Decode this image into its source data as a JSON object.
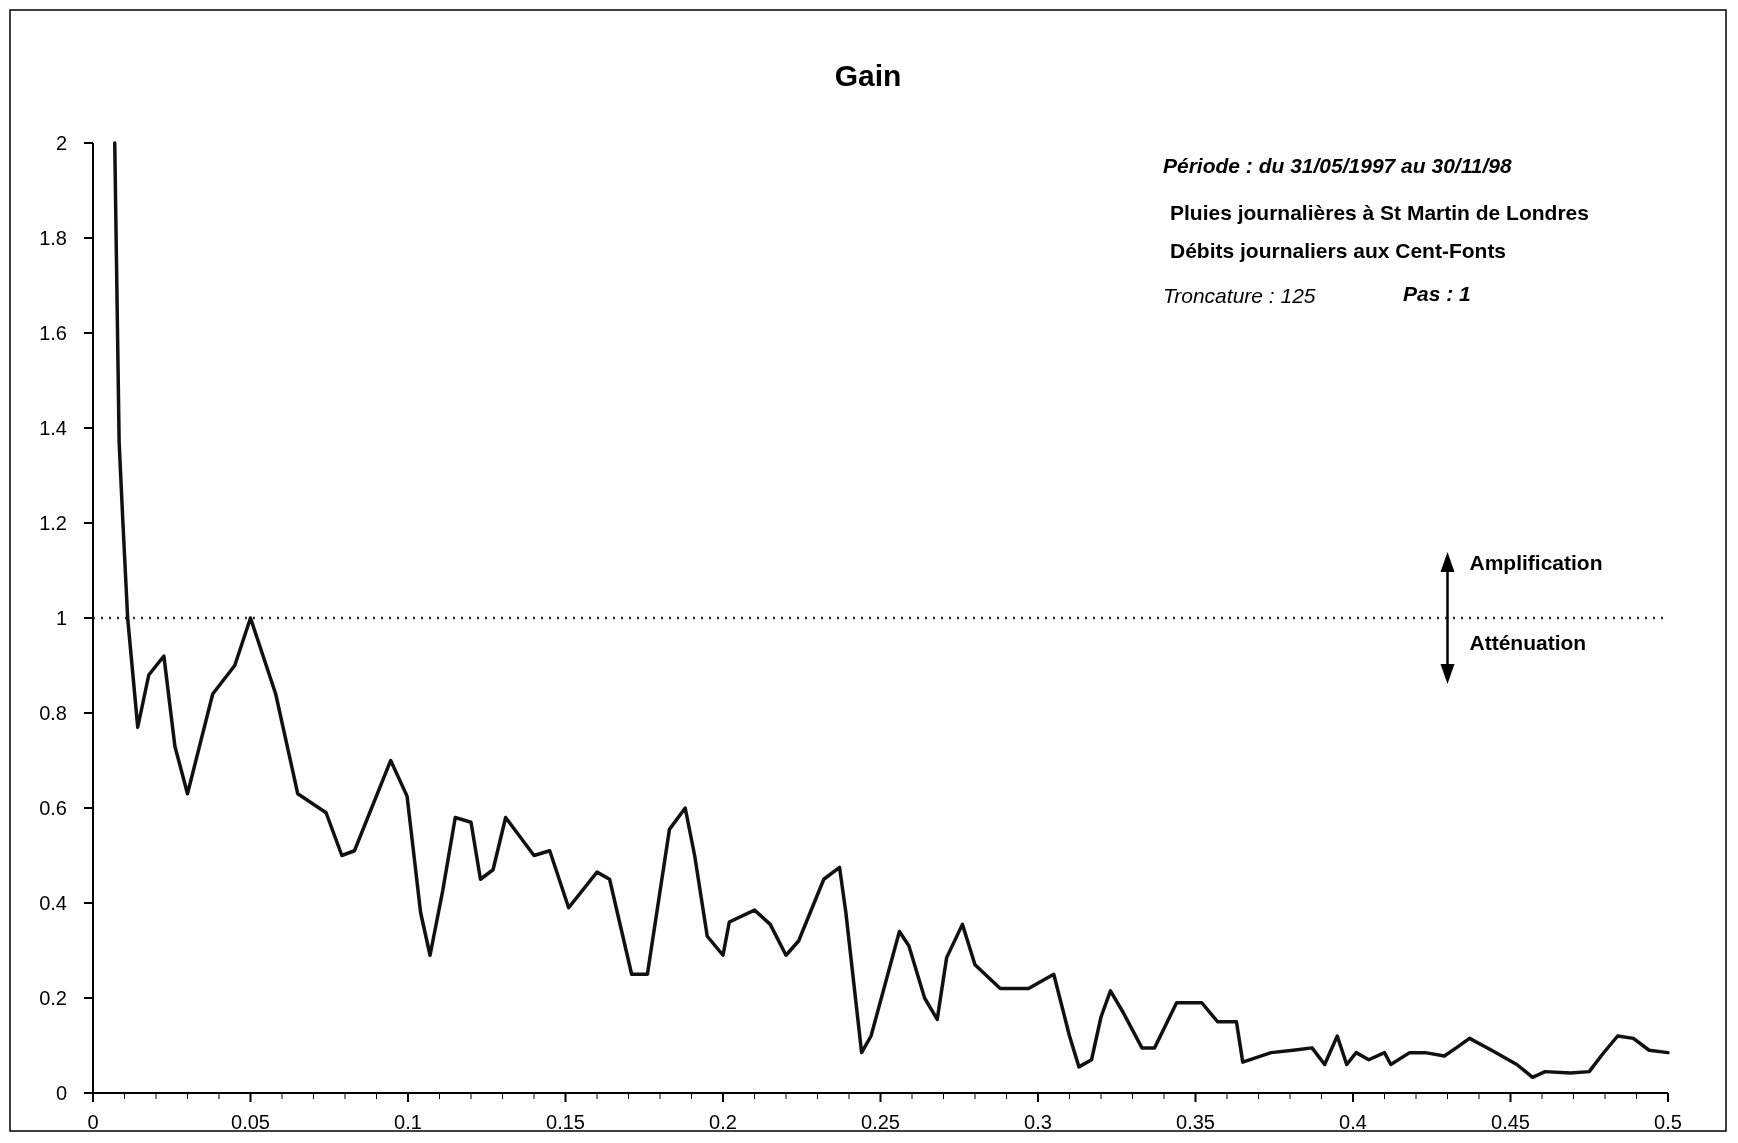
{
  "chart_data": {
    "type": "line",
    "title": "Gain",
    "x": [
      0.0069,
      0.0083,
      0.0095,
      0.011,
      0.0142,
      0.0177,
      0.0225,
      0.026,
      0.03,
      0.038,
      0.045,
      0.05,
      0.058,
      0.065,
      0.074,
      0.079,
      0.083,
      0.0945,
      0.0997,
      0.104,
      0.107,
      0.111,
      0.115,
      0.12,
      0.123,
      0.127,
      0.131,
      0.14,
      0.145,
      0.151,
      0.16,
      0.164,
      0.171,
      0.176,
      0.183,
      0.188,
      0.191,
      0.195,
      0.2,
      0.202,
      0.21,
      0.215,
      0.22,
      0.224,
      0.232,
      0.237,
      0.239,
      0.244,
      0.247,
      0.256,
      0.259,
      0.264,
      0.268,
      0.271,
      0.276,
      0.28,
      0.288,
      0.297,
      0.305,
      0.31,
      0.313,
      0.317,
      0.32,
      0.323,
      0.327,
      0.333,
      0.337,
      0.344,
      0.352,
      0.357,
      0.363,
      0.365,
      0.374,
      0.381,
      0.387,
      0.391,
      0.395,
      0.398,
      0.401,
      0.405,
      0.41,
      0.412,
      0.418,
      0.423,
      0.429,
      0.433,
      0.437,
      0.444,
      0.452,
      0.457,
      0.461,
      0.469,
      0.475,
      0.479,
      0.484,
      0.489,
      0.494,
      0.5
    ],
    "series": [
      {
        "color": "#111111",
        "values": [
          2.0,
          1.37,
          1.2,
          1.0,
          0.77,
          0.88,
          0.92,
          0.73,
          0.63,
          0.84,
          0.9,
          1.0,
          0.84,
          0.63,
          0.59,
          0.5,
          0.51,
          0.7,
          0.625,
          0.38,
          0.29,
          0.425,
          0.58,
          0.57,
          0.45,
          0.47,
          0.58,
          0.5,
          0.51,
          0.39,
          0.465,
          0.45,
          0.25,
          0.25,
          0.555,
          0.6,
          0.5,
          0.33,
          0.29,
          0.36,
          0.385,
          0.355,
          0.29,
          0.32,
          0.45,
          0.475,
          0.38,
          0.085,
          0.12,
          0.34,
          0.31,
          0.2,
          0.155,
          0.285,
          0.355,
          0.27,
          0.22,
          0.22,
          0.25,
          0.12,
          0.055,
          0.07,
          0.16,
          0.215,
          0.17,
          0.095,
          0.095,
          0.19,
          0.19,
          0.15,
          0.15,
          0.065,
          0.085,
          0.09,
          0.095,
          0.06,
          0.12,
          0.06,
          0.085,
          0.07,
          0.085,
          0.06,
          0.085,
          0.085,
          0.078,
          0.096,
          0.115,
          0.09,
          0.06,
          0.033,
          0.045,
          0.042,
          0.045,
          0.08,
          0.12,
          0.115,
          0.09,
          0.085
        ]
      }
    ],
    "xlim": [
      0,
      0.5
    ],
    "xticks": [
      0,
      0.05,
      0.1,
      0.15,
      0.2,
      0.25,
      0.3,
      0.35,
      0.4,
      0.45,
      0.5
    ],
    "ylim": [
      0,
      2
    ],
    "yticks": [
      0,
      0.2,
      0.4,
      0.6,
      0.8,
      1,
      1.2,
      1.4,
      1.6,
      1.8,
      2
    ],
    "grid": false,
    "marker": "none",
    "line_style": "solid",
    "ref_lines": [
      {
        "axis": "y",
        "value": 1,
        "line_style": "dotted",
        "color": "#333333"
      }
    ],
    "annotations": [
      "Période : du 31/05/1997 au 30/11/98",
      "Pluies journalières à St Martin de Londres",
      "Débits journaliers aux Cent-Fonts",
      "Troncature : 125",
      "Pas : 1",
      "Amplification",
      "Atténuation"
    ]
  }
}
